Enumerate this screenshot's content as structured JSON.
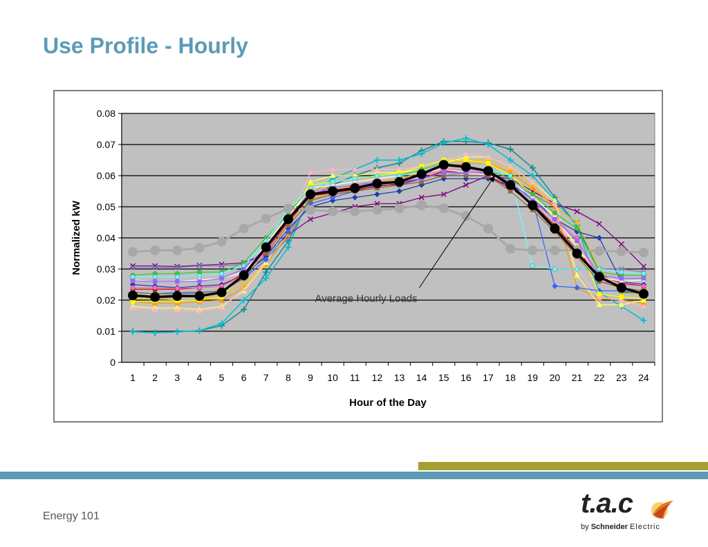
{
  "slide": {
    "title": "Use Profile - Hourly"
  },
  "footer": {
    "text": "Energy 101"
  },
  "logo": {
    "brand": "t.a.c",
    "by": "by",
    "company": "Schneider",
    "suffix": "Electric"
  },
  "colors": {
    "title": "#5b9bb5",
    "plot_bg": "#c0c0c0",
    "band_blue": "#5e9ab5",
    "band_olive": "#a5a033"
  },
  "chart_data": {
    "type": "line",
    "title": "",
    "xlabel": "Hour of the Day",
    "ylabel": "Normalized kW",
    "x": [
      1,
      2,
      3,
      4,
      5,
      6,
      7,
      8,
      9,
      10,
      11,
      12,
      13,
      14,
      15,
      16,
      17,
      18,
      19,
      20,
      21,
      22,
      23,
      24
    ],
    "ylim": [
      0,
      0.08
    ],
    "yticks": [
      "0",
      "0.01",
      "0.02",
      "0.03",
      "0.04",
      "0.05",
      "0.06",
      "0.07",
      "0.08"
    ],
    "grid": true,
    "annotation": {
      "text": "Average Hourly Loads",
      "points_to_x": 17.3,
      "points_to_y": 0.06
    },
    "series": [
      {
        "name": "",
        "color": "#000000",
        "marker": "circle",
        "width": 3.5,
        "values": [
          0.0215,
          0.021,
          0.0213,
          0.0213,
          0.0225,
          0.028,
          0.037,
          0.046,
          0.054,
          0.055,
          0.056,
          0.0575,
          0.058,
          0.0605,
          0.0635,
          0.0628,
          0.0615,
          0.057,
          0.0505,
          0.043,
          0.035,
          0.0275,
          0.024,
          0.022
        ]
      },
      {
        "name": "",
        "color": "#a8a8a8",
        "marker": "circle",
        "width": 3,
        "values": [
          0.0355,
          0.036,
          0.036,
          0.0368,
          0.0388,
          0.043,
          0.0462,
          0.0495,
          0.049,
          0.0485,
          0.0485,
          0.049,
          0.0495,
          0.0505,
          0.0495,
          0.047,
          0.043,
          0.0365,
          0.036,
          0.036,
          0.036,
          0.0358,
          0.0357,
          0.0353
        ]
      },
      {
        "name": "",
        "color": "#148d8d",
        "marker": "plus",
        "width": 1.5,
        "values": [
          0.01,
          0.0095,
          0.0098,
          0.0102,
          0.0118,
          0.017,
          0.029,
          0.039,
          0.053,
          0.057,
          0.06,
          0.0625,
          0.064,
          0.068,
          0.071,
          0.071,
          0.0705,
          0.0685,
          0.0625,
          0.053,
          0.044,
          0.029,
          0.0225,
          0.0225
        ]
      },
      {
        "name": "",
        "color": "#00bcd4",
        "marker": "plus",
        "width": 1.5,
        "values": [
          0.0098,
          0.0095,
          0.0098,
          0.0102,
          0.0125,
          0.02,
          0.027,
          0.037,
          0.054,
          0.059,
          0.062,
          0.065,
          0.065,
          0.067,
          0.0705,
          0.072,
          0.07,
          0.065,
          0.06,
          0.052,
          0.044,
          0.0225,
          0.018,
          0.0135
        ]
      },
      {
        "name": "",
        "color": "#800080",
        "marker": "x",
        "width": 1.3,
        "values": [
          0.031,
          0.031,
          0.0308,
          0.0312,
          0.0315,
          0.032,
          0.035,
          0.041,
          0.046,
          0.048,
          0.05,
          0.051,
          0.051,
          0.053,
          0.054,
          0.057,
          0.06,
          0.059,
          0.055,
          0.051,
          0.0485,
          0.0445,
          0.038,
          0.0308
        ]
      },
      {
        "name": "",
        "color": "#7b7fb8",
        "marker": "x",
        "width": 1.3,
        "values": [
          0.0305,
          0.0305,
          0.0305,
          0.031,
          0.031,
          0.0315,
          0.033,
          0.04,
          0.052,
          0.054,
          0.055,
          0.056,
          0.057,
          0.058,
          0.06,
          0.061,
          0.06,
          0.057,
          0.054,
          0.05,
          0.045,
          0.03,
          0.03,
          0.029
        ]
      },
      {
        "name": "",
        "color": "#ffc000",
        "marker": "triangle",
        "width": 1.3,
        "values": [
          0.0205,
          0.0205,
          0.02,
          0.02,
          0.022,
          0.025,
          0.032,
          0.044,
          0.055,
          0.057,
          0.058,
          0.06,
          0.061,
          0.062,
          0.064,
          0.065,
          0.065,
          0.062,
          0.057,
          0.05,
          0.045,
          0.03,
          0.022,
          0.022
        ]
      },
      {
        "name": "",
        "color": "#ff9900",
        "marker": "triangle",
        "width": 1.3,
        "values": [
          0.0195,
          0.019,
          0.019,
          0.0195,
          0.02,
          0.024,
          0.0315,
          0.041,
          0.052,
          0.055,
          0.057,
          0.058,
          0.059,
          0.061,
          0.063,
          0.064,
          0.064,
          0.061,
          0.056,
          0.05,
          0.024,
          0.0205,
          0.02,
          0.019
        ]
      },
      {
        "name": "",
        "color": "#ffff66",
        "marker": "triangle",
        "width": 1.3,
        "values": [
          0.018,
          0.0175,
          0.0175,
          0.017,
          0.018,
          0.023,
          0.032,
          0.044,
          0.058,
          0.06,
          0.06,
          0.061,
          0.061,
          0.062,
          0.064,
          0.066,
          0.066,
          0.063,
          0.058,
          0.052,
          0.028,
          0.0185,
          0.0185,
          0.02
        ]
      },
      {
        "name": "",
        "color": "#ffb6c1",
        "marker": "triangle",
        "width": 1.3,
        "values": [
          0.0175,
          0.017,
          0.0168,
          0.0165,
          0.0175,
          0.0235,
          0.033,
          0.045,
          0.061,
          0.062,
          0.062,
          0.062,
          0.062,
          0.063,
          0.065,
          0.067,
          0.066,
          0.063,
          0.058,
          0.051,
          0.03,
          0.021,
          0.02,
          0.018
        ]
      },
      {
        "name": "",
        "color": "#1f3fb0",
        "marker": "diamond",
        "width": 1.3,
        "values": [
          0.025,
          0.0245,
          0.024,
          0.0245,
          0.025,
          0.028,
          0.034,
          0.043,
          0.05,
          0.052,
          0.053,
          0.054,
          0.055,
          0.057,
          0.059,
          0.059,
          0.059,
          0.057,
          0.053,
          0.046,
          0.042,
          0.04,
          0.026,
          0.025
        ]
      },
      {
        "name": "",
        "color": "#3366ff",
        "marker": "diamond",
        "width": 1.3,
        "values": [
          0.0225,
          0.022,
          0.0225,
          0.0225,
          0.023,
          0.027,
          0.033,
          0.042,
          0.051,
          0.053,
          0.055,
          0.057,
          0.057,
          0.059,
          0.061,
          0.061,
          0.061,
          0.058,
          0.052,
          0.0245,
          0.024,
          0.023,
          0.023,
          0.022
        ]
      },
      {
        "name": "",
        "color": "#cc0000",
        "marker": "square",
        "width": 1.3,
        "values": [
          0.0235,
          0.0235,
          0.0235,
          0.024,
          0.0245,
          0.0285,
          0.036,
          0.045,
          0.0535,
          0.0545,
          0.0555,
          0.0565,
          0.0575,
          0.059,
          0.0615,
          0.061,
          0.06,
          0.056,
          0.051,
          0.044,
          0.036,
          0.028,
          0.0255,
          0.0245
        ]
      },
      {
        "name": "",
        "color": "#ffff00",
        "marker": "square",
        "width": 1.3,
        "values": [
          0.0195,
          0.0198,
          0.0198,
          0.02,
          0.021,
          0.029,
          0.038,
          0.047,
          0.057,
          0.058,
          0.059,
          0.06,
          0.061,
          0.063,
          0.065,
          0.065,
          0.064,
          0.06,
          0.054,
          0.046,
          0.038,
          0.022,
          0.021,
          0.0205
        ]
      },
      {
        "name": "",
        "color": "#ffffff",
        "marker": "circle",
        "width": 1.3,
        "values": [
          0.0265,
          0.026,
          0.026,
          0.0265,
          0.027,
          0.029,
          0.038,
          0.047,
          0.056,
          0.057,
          0.058,
          0.059,
          0.06,
          0.061,
          0.062,
          0.061,
          0.06,
          0.058,
          0.053,
          0.047,
          0.037,
          0.0275,
          0.026,
          0.0265
        ]
      },
      {
        "name": "",
        "color": "#33cc33",
        "marker": "circle",
        "width": 1.3,
        "values": [
          0.028,
          0.0285,
          0.0285,
          0.029,
          0.029,
          0.032,
          0.04,
          0.048,
          0.056,
          0.058,
          0.059,
          0.06,
          0.06,
          0.062,
          0.064,
          0.063,
          0.062,
          0.059,
          0.054,
          0.048,
          0.043,
          0.029,
          0.028,
          0.028
        ]
      },
      {
        "name": "",
        "color": "#66ffff",
        "marker": "circle",
        "width": 1.3,
        "values": [
          0.0275,
          0.0275,
          0.0275,
          0.0278,
          0.0285,
          0.031,
          0.039,
          0.049,
          0.056,
          0.058,
          0.059,
          0.06,
          0.06,
          0.061,
          0.063,
          0.063,
          0.062,
          0.06,
          0.031,
          0.03,
          0.03,
          0.03,
          0.029,
          0.0285
        ]
      },
      {
        "name": "",
        "color": "#ff66cc",
        "marker": "circle",
        "width": 1.3,
        "values": [
          0.024,
          0.024,
          0.0238,
          0.024,
          0.0245,
          0.028,
          0.036,
          0.046,
          0.055,
          0.056,
          0.057,
          0.058,
          0.058,
          0.06,
          0.062,
          0.062,
          0.061,
          0.058,
          0.052,
          0.046,
          0.04,
          0.026,
          0.025,
          0.0245
        ]
      },
      {
        "name": "",
        "color": "#996633",
        "marker": "square",
        "width": 1.3,
        "values": [
          0.0225,
          0.022,
          0.022,
          0.0223,
          0.023,
          0.027,
          0.035,
          0.044,
          0.052,
          0.054,
          0.055,
          0.056,
          0.057,
          0.058,
          0.06,
          0.06,
          0.06,
          0.055,
          0.049,
          0.042,
          0.034,
          0.026,
          0.024,
          0.023
        ]
      },
      {
        "name": "",
        "color": "#9966ff",
        "marker": "square",
        "width": 1.3,
        "values": [
          0.0262,
          0.026,
          0.026,
          0.026,
          0.027,
          0.03,
          0.037,
          0.046,
          0.054,
          0.056,
          0.057,
          0.058,
          0.058,
          0.059,
          0.061,
          0.061,
          0.061,
          0.058,
          0.052,
          0.046,
          0.039,
          0.028,
          0.027,
          0.027
        ]
      }
    ]
  }
}
